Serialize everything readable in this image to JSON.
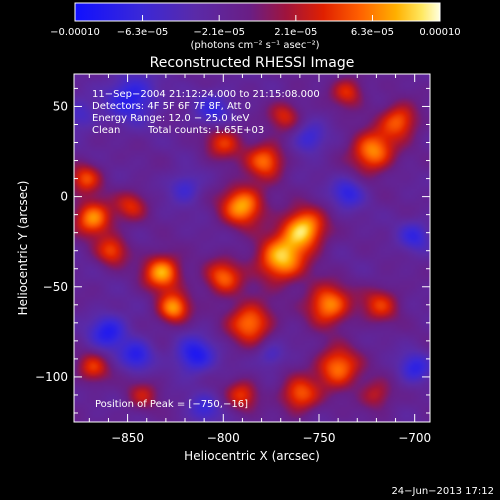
{
  "chart_data": {
    "type": "heatmap",
    "title": "Reconstructed RHESSI Image",
    "xlabel": "Heliocentric X (arcsec)",
    "ylabel": "Heliocentric Y (arcsec)",
    "xlim": [
      -878,
      -692
    ],
    "ylim": [
      -125,
      68
    ],
    "x_ticks": [
      -850,
      -800,
      -750,
      -700
    ],
    "x_tick_labels": [
      "−850",
      "−800",
      "−750",
      "−700"
    ],
    "y_ticks": [
      -100,
      -50,
      0,
      50
    ],
    "y_tick_labels": [
      "−100",
      "−50",
      "0",
      "50"
    ],
    "colorbar": {
      "range": [
        -0.0001,
        0.0001
      ],
      "tick_values": [
        -0.0001,
        -6.3e-05,
        -2.1e-05,
        2.1e-05,
        6.3e-05,
        0.0001
      ],
      "tick_labels": [
        "−0.00010",
        "−6.3e−05",
        "−2.1e−05",
        "2.1e−05",
        "6.3e−05",
        "0.00010"
      ],
      "units": "(photons cm⁻² s⁻¹ asec⁻²)"
    },
    "annotations": [
      "11−Sep−2004 21:12:24.000 to 21:15:08.000",
      "Detectors: 4F 5F 6F 7F 8F, Att 0",
      "Energy Range: 12.0 − 25.0 keV",
      "Clean",
      "Total counts: 1.65E+03"
    ],
    "peak_label": "Position of Peak = [−750,−16]",
    "footer_date": "24−Jun−2013 17:12",
    "blobs": [
      {
        "x": -758,
        "y": -18,
        "s": 8,
        "a": 1.0
      },
      {
        "x": -770,
        "y": -35,
        "s": 9,
        "a": 0.95
      },
      {
        "x": -790,
        "y": -5,
        "s": 8,
        "a": 0.9
      },
      {
        "x": -778,
        "y": 20,
        "s": 7,
        "a": 0.75
      },
      {
        "x": -786,
        "y": -70,
        "s": 8,
        "a": 0.8
      },
      {
        "x": -800,
        "y": -45,
        "s": 7,
        "a": 0.7
      },
      {
        "x": -745,
        "y": -60,
        "s": 8,
        "a": 0.85
      },
      {
        "x": -740,
        "y": -95,
        "s": 8,
        "a": 0.8
      },
      {
        "x": -760,
        "y": -110,
        "s": 7,
        "a": 0.7
      },
      {
        "x": -722,
        "y": 25,
        "s": 8,
        "a": 0.85
      },
      {
        "x": -708,
        "y": 42,
        "s": 7,
        "a": 0.7
      },
      {
        "x": -718,
        "y": -60,
        "s": 7,
        "a": 0.55
      },
      {
        "x": -832,
        "y": -42,
        "s": 7,
        "a": 0.9
      },
      {
        "x": -826,
        "y": -62,
        "s": 6,
        "a": 0.85
      },
      {
        "x": -868,
        "y": -12,
        "s": 7,
        "a": 0.85
      },
      {
        "x": -858,
        "y": -30,
        "s": 6,
        "a": 0.6
      },
      {
        "x": -848,
        "y": -5,
        "s": 6,
        "a": 0.5
      },
      {
        "x": -872,
        "y": 10,
        "s": 6,
        "a": 0.6
      },
      {
        "x": -800,
        "y": 30,
        "s": 7,
        "a": 0.55
      },
      {
        "x": -768,
        "y": 45,
        "s": 6,
        "a": 0.5
      },
      {
        "x": -735,
        "y": 58,
        "s": 6,
        "a": 0.55
      },
      {
        "x": -790,
        "y": -110,
        "s": 6,
        "a": 0.55
      },
      {
        "x": -720,
        "y": -110,
        "s": 6,
        "a": 0.45
      },
      {
        "x": -868,
        "y": -95,
        "s": 6,
        "a": 0.55
      },
      {
        "x": -842,
        "y": -110,
        "s": 6,
        "a": 0.4
      },
      {
        "x": -848,
        "y": 55,
        "s": 9,
        "a": -0.6
      },
      {
        "x": -860,
        "y": -75,
        "s": 7,
        "a": -0.6
      },
      {
        "x": -845,
        "y": -88,
        "s": 6,
        "a": -0.55
      },
      {
        "x": -815,
        "y": -88,
        "s": 7,
        "a": -0.65
      },
      {
        "x": -805,
        "y": 48,
        "s": 7,
        "a": -0.45
      },
      {
        "x": -755,
        "y": 32,
        "s": 6,
        "a": -0.45
      },
      {
        "x": -735,
        "y": 2,
        "s": 6,
        "a": -0.5
      },
      {
        "x": -700,
        "y": -22,
        "s": 6,
        "a": -0.45
      },
      {
        "x": -700,
        "y": -95,
        "s": 6,
        "a": -0.5
      },
      {
        "x": -820,
        "y": 5,
        "s": 6,
        "a": -0.4
      },
      {
        "x": -810,
        "y": -118,
        "s": 6,
        "a": -0.4
      },
      {
        "x": -875,
        "y": 45,
        "s": 6,
        "a": -0.35
      },
      {
        "x": -775,
        "y": -88,
        "s": 5,
        "a": -0.35
      }
    ]
  }
}
